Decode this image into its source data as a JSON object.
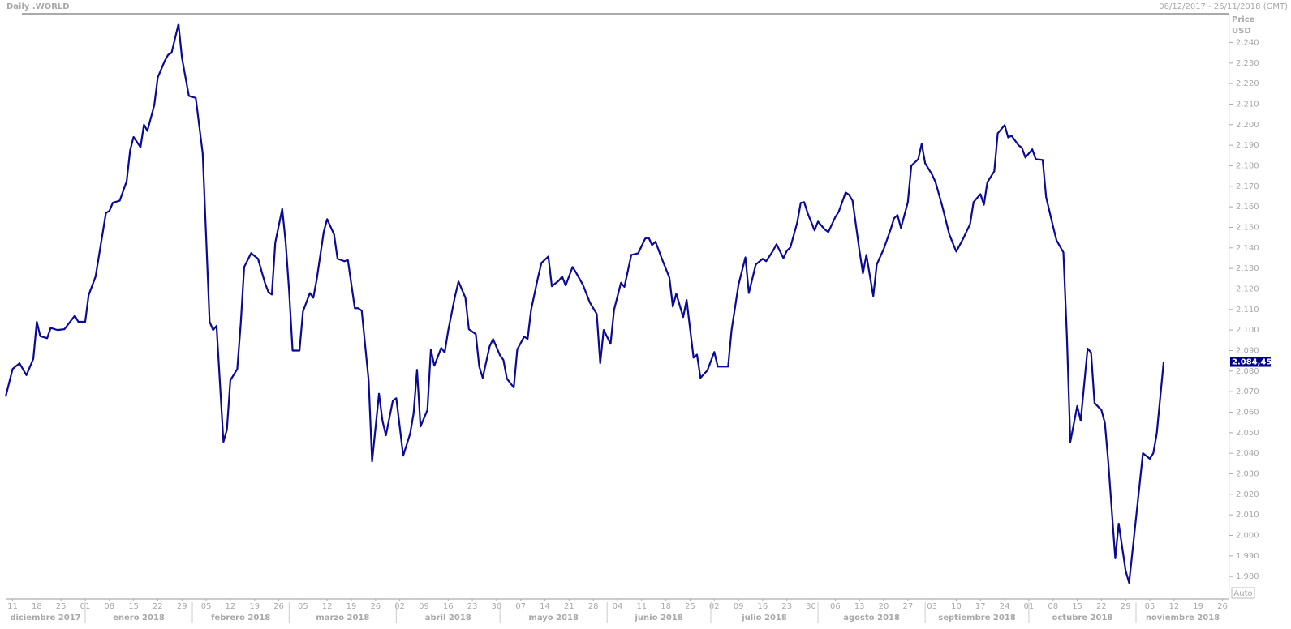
{
  "chart_data": {
    "type": "line",
    "title": "Daily .WORLD",
    "subtitle": "08/12/2017 - 26/11/2018 (GMT)",
    "y_label": "Price",
    "y_unit": "USD",
    "scale_button": "Auto",
    "current_label": "2.084,45",
    "color": "#0a0a96",
    "xlim": [
      "2017-12-09",
      "2018-11-28"
    ],
    "ylim": [
      1969,
      2254
    ],
    "x": [
      "2017-12-09",
      "2017-12-11",
      "2017-12-13",
      "2017-12-15",
      "2017-12-17",
      "2017-12-18",
      "2017-12-19",
      "2017-12-21",
      "2017-12-22",
      "2017-12-24",
      "2017-12-26",
      "2017-12-29",
      "2017-12-30",
      "2018-01-01",
      "2018-01-02",
      "2018-01-04",
      "2018-01-07",
      "2018-01-08",
      "2018-01-09",
      "2018-01-11",
      "2018-01-13",
      "2018-01-14",
      "2018-01-15",
      "2018-01-17",
      "2018-01-18",
      "2018-01-19",
      "2018-01-21",
      "2018-01-22",
      "2018-01-24",
      "2018-01-25",
      "2018-01-26",
      "2018-01-28",
      "2018-01-29",
      "2018-01-31",
      "2018-02-02",
      "2018-02-04",
      "2018-02-06",
      "2018-02-07",
      "2018-02-08",
      "2018-02-10",
      "2018-02-11",
      "2018-02-12",
      "2018-02-14",
      "2018-02-15",
      "2018-02-16",
      "2018-02-18",
      "2018-02-20",
      "2018-02-22",
      "2018-02-23",
      "2018-02-24",
      "2018-02-25",
      "2018-02-27",
      "2018-02-28",
      "2018-03-01",
      "2018-03-02",
      "2018-03-04",
      "2018-03-05",
      "2018-03-07",
      "2018-03-08",
      "2018-03-09",
      "2018-03-11",
      "2018-03-12",
      "2018-03-14",
      "2018-03-15",
      "2018-03-17",
      "2018-03-18",
      "2018-03-20",
      "2018-03-21",
      "2018-03-22",
      "2018-03-24",
      "2018-03-25",
      "2018-03-27",
      "2018-03-28",
      "2018-03-29",
      "2018-03-31",
      "2018-04-01",
      "2018-04-03",
      "2018-04-05",
      "2018-04-06",
      "2018-04-07",
      "2018-04-08",
      "2018-04-10",
      "2018-04-11",
      "2018-04-12",
      "2018-04-14",
      "2018-04-15",
      "2018-04-16",
      "2018-04-18",
      "2018-04-19",
      "2018-04-21",
      "2018-04-22",
      "2018-04-24",
      "2018-04-25",
      "2018-04-26",
      "2018-04-28",
      "2018-04-29",
      "2018-05-01",
      "2018-05-02",
      "2018-05-03",
      "2018-05-05",
      "2018-05-06",
      "2018-05-08",
      "2018-05-09",
      "2018-05-10",
      "2018-05-12",
      "2018-05-13",
      "2018-05-15",
      "2018-05-16",
      "2018-05-18",
      "2018-05-19",
      "2018-05-20",
      "2018-05-22",
      "2018-05-23",
      "2018-05-25",
      "2018-05-27",
      "2018-05-29",
      "2018-05-30",
      "2018-05-31",
      "2018-06-02",
      "2018-06-03",
      "2018-06-05",
      "2018-06-06",
      "2018-06-08",
      "2018-06-10",
      "2018-06-12",
      "2018-06-13",
      "2018-06-14",
      "2018-06-15",
      "2018-06-17",
      "2018-06-19",
      "2018-06-20",
      "2018-06-21",
      "2018-06-23",
      "2018-06-24",
      "2018-06-26",
      "2018-06-27",
      "2018-06-28",
      "2018-06-30",
      "2018-07-02",
      "2018-07-03",
      "2018-07-06",
      "2018-07-07",
      "2018-07-09",
      "2018-07-11",
      "2018-07-12",
      "2018-07-14",
      "2018-07-16",
      "2018-07-17",
      "2018-07-19",
      "2018-07-20",
      "2018-07-22",
      "2018-07-23",
      "2018-07-24",
      "2018-07-26",
      "2018-07-27",
      "2018-07-28",
      "2018-07-29",
      "2018-07-31",
      "2018-08-01",
      "2018-08-03",
      "2018-08-04",
      "2018-08-06",
      "2018-08-07",
      "2018-08-09",
      "2018-08-10",
      "2018-08-11",
      "2018-08-13",
      "2018-08-14",
      "2018-08-15",
      "2018-08-17",
      "2018-08-18",
      "2018-08-20",
      "2018-08-22",
      "2018-08-23",
      "2018-08-24",
      "2018-08-25",
      "2018-08-27",
      "2018-08-28",
      "2018-08-30",
      "2018-08-31",
      "2018-09-01",
      "2018-09-03",
      "2018-09-04",
      "2018-09-06",
      "2018-09-08",
      "2018-09-10",
      "2018-09-12",
      "2018-09-14",
      "2018-09-15",
      "2018-09-17",
      "2018-09-18",
      "2018-09-19",
      "2018-09-21",
      "2018-09-22",
      "2018-09-24",
      "2018-09-25",
      "2018-09-26",
      "2018-09-28",
      "2018-09-29",
      "2018-09-30",
      "2018-10-02",
      "2018-10-03",
      "2018-10-05",
      "2018-10-06",
      "2018-10-08",
      "2018-10-09",
      "2018-10-11",
      "2018-10-12",
      "2018-10-13",
      "2018-10-15",
      "2018-10-16",
      "2018-10-18",
      "2018-10-19",
      "2018-10-20",
      "2018-10-22",
      "2018-10-23",
      "2018-10-24",
      "2018-10-26",
      "2018-10-27",
      "2018-10-29",
      "2018-10-30",
      "2018-10-31",
      "2018-11-02",
      "2018-11-03",
      "2018-11-05",
      "2018-11-06",
      "2018-11-07",
      "2018-11-09"
    ],
    "values": [
      2067.6,
      2081,
      2083.8,
      2078,
      2086,
      2104,
      2097,
      2096,
      2101,
      2100,
      2100.4,
      2107,
      2104,
      2104,
      2117,
      2126,
      2157,
      2158,
      2162,
      2163,
      2172.5,
      2187.5,
      2194,
      2189,
      2200,
      2197,
      2209.6,
      2223,
      2231,
      2234,
      2235,
      2249,
      2232.5,
      2214,
      2213,
      2186,
      2104,
      2100,
      2102,
      2045.5,
      2051.5,
      2075.5,
      2081,
      2103,
      2130.7,
      2137.4,
      2134.7,
      2123,
      2118.5,
      2117.3,
      2142.6,
      2159,
      2142.6,
      2119,
      2090,
      2090,
      2109,
      2118,
      2115.7,
      2124.8,
      2147.7,
      2154,
      2146.5,
      2134.7,
      2133.5,
      2134,
      2110.6,
      2110.6,
      2109.4,
      2075.5,
      2036,
      2069,
      2055.8,
      2048.7,
      2065.6,
      2066.8,
      2038.8,
      2049.5,
      2059.3,
      2080.6,
      2053,
      2061,
      2090.5,
      2082.6,
      2091.3,
      2089,
      2099.6,
      2116.5,
      2123.6,
      2115.7,
      2100.4,
      2098,
      2082.2,
      2076.7,
      2092,
      2095.6,
      2087.7,
      2085.4,
      2076.3,
      2072,
      2090.5,
      2096.8,
      2095.6,
      2109.8,
      2125.6,
      2132.7,
      2135.8,
      2121.3,
      2124,
      2126,
      2121.7,
      2130.7,
      2128,
      2122,
      2113.4,
      2107.8,
      2083.8,
      2100,
      2093.3,
      2109.8,
      2123,
      2121,
      2136.6,
      2137.4,
      2144.5,
      2145,
      2141.4,
      2143,
      2134,
      2125.6,
      2111.4,
      2117.7,
      2106.3,
      2114.6,
      2086.5,
      2088,
      2076.7,
      2080.3,
      2089.3,
      2082.2,
      2082.2,
      2100,
      2122,
      2135.4,
      2118,
      2131.9,
      2134.7,
      2133.5,
      2138.6,
      2141.8,
      2135,
      2138.6,
      2140.2,
      2152.4,
      2161.9,
      2162.3,
      2157,
      2148.5,
      2152.8,
      2148.9,
      2147.7,
      2155,
      2157.6,
      2167,
      2165.8,
      2163,
      2138.6,
      2127.6,
      2136.6,
      2116.5,
      2131.9,
      2139.4,
      2148.9,
      2154.4,
      2156,
      2149.7,
      2162.3,
      2180,
      2183.2,
      2190.7,
      2181.2,
      2175.7,
      2172,
      2160,
      2146.5,
      2138.2,
      2144.5,
      2151.6,
      2162.3,
      2166.2,
      2161,
      2172,
      2177.3,
      2195.8,
      2199.8,
      2193.8,
      2194.6,
      2190,
      2188.7,
      2184,
      2188,
      2183.2,
      2182.8,
      2164.7,
      2150.5,
      2143.7,
      2137.8,
      2097.2,
      2045.5,
      2063,
      2055.8,
      2091,
      2089,
      2064.5,
      2061,
      2054.7,
      2035.3,
      1988.8,
      2005.7,
      1982.8,
      1976.9,
      1992.6,
      2024,
      2040,
      2037.3,
      2040,
      2049.5,
      2084.45
    ],
    "yticks": [
      {
        "value": 1980,
        "label": "1.980"
      },
      {
        "value": 1990,
        "label": "1.990"
      },
      {
        "value": 2000,
        "label": "2.000"
      },
      {
        "value": 2010,
        "label": "2.010"
      },
      {
        "value": 2020,
        "label": "2.020"
      },
      {
        "value": 2030,
        "label": "2.030"
      },
      {
        "value": 2040,
        "label": "2.040"
      },
      {
        "value": 2050,
        "label": "2.050"
      },
      {
        "value": 2060,
        "label": "2.060"
      },
      {
        "value": 2070,
        "label": "2.070"
      },
      {
        "value": 2080,
        "label": "2.080"
      },
      {
        "value": 2090,
        "label": "2.090"
      },
      {
        "value": 2100,
        "label": "2.100"
      },
      {
        "value": 2110,
        "label": "2.110"
      },
      {
        "value": 2120,
        "label": "2.120"
      },
      {
        "value": 2130,
        "label": "2.130"
      },
      {
        "value": 2140,
        "label": "2.140"
      },
      {
        "value": 2150,
        "label": "2.150"
      },
      {
        "value": 2160,
        "label": "2.160"
      },
      {
        "value": 2170,
        "label": "2.170"
      },
      {
        "value": 2180,
        "label": "2.180"
      },
      {
        "value": 2190,
        "label": "2.190"
      },
      {
        "value": 2200,
        "label": "2.200"
      },
      {
        "value": 2210,
        "label": "2.210"
      },
      {
        "value": 2220,
        "label": "2.220"
      },
      {
        "value": 2230,
        "label": "2.230"
      },
      {
        "value": 2240,
        "label": "2.240"
      }
    ],
    "xticks": [
      {
        "value": "2017-12-11",
        "label": "11"
      },
      {
        "value": "2017-12-18",
        "label": "18"
      },
      {
        "value": "2017-12-25",
        "label": "25"
      },
      {
        "value": "2018-01-01",
        "label": "01"
      },
      {
        "value": "2018-01-08",
        "label": "08"
      },
      {
        "value": "2018-01-15",
        "label": "15"
      },
      {
        "value": "2018-01-22",
        "label": "22"
      },
      {
        "value": "2018-01-29",
        "label": "29"
      },
      {
        "value": "2018-02-05",
        "label": "05"
      },
      {
        "value": "2018-02-12",
        "label": "12"
      },
      {
        "value": "2018-02-19",
        "label": "19"
      },
      {
        "value": "2018-02-26",
        "label": "26"
      },
      {
        "value": "2018-03-05",
        "label": "05"
      },
      {
        "value": "2018-03-12",
        "label": "12"
      },
      {
        "value": "2018-03-19",
        "label": "19"
      },
      {
        "value": "2018-03-26",
        "label": "26"
      },
      {
        "value": "2018-04-02",
        "label": "02"
      },
      {
        "value": "2018-04-09",
        "label": "09"
      },
      {
        "value": "2018-04-16",
        "label": "16"
      },
      {
        "value": "2018-04-23",
        "label": "23"
      },
      {
        "value": "2018-04-30",
        "label": "30"
      },
      {
        "value": "2018-05-07",
        "label": "07"
      },
      {
        "value": "2018-05-14",
        "label": "14"
      },
      {
        "value": "2018-05-21",
        "label": "21"
      },
      {
        "value": "2018-05-28",
        "label": "28"
      },
      {
        "value": "2018-06-04",
        "label": "04"
      },
      {
        "value": "2018-06-11",
        "label": "11"
      },
      {
        "value": "2018-06-18",
        "label": "18"
      },
      {
        "value": "2018-06-25",
        "label": "25"
      },
      {
        "value": "2018-07-02",
        "label": "02"
      },
      {
        "value": "2018-07-09",
        "label": "09"
      },
      {
        "value": "2018-07-16",
        "label": "16"
      },
      {
        "value": "2018-07-23",
        "label": "23"
      },
      {
        "value": "2018-07-30",
        "label": "30"
      },
      {
        "value": "2018-08-06",
        "label": "06"
      },
      {
        "value": "2018-08-13",
        "label": "13"
      },
      {
        "value": "2018-08-20",
        "label": "20"
      },
      {
        "value": "2018-08-27",
        "label": "27"
      },
      {
        "value": "2018-09-03",
        "label": "03"
      },
      {
        "value": "2018-09-10",
        "label": "10"
      },
      {
        "value": "2018-09-17",
        "label": "17"
      },
      {
        "value": "2018-09-24",
        "label": "24"
      },
      {
        "value": "2018-10-01",
        "label": "01"
      },
      {
        "value": "2018-10-08",
        "label": "08"
      },
      {
        "value": "2018-10-15",
        "label": "15"
      },
      {
        "value": "2018-10-22",
        "label": "22"
      },
      {
        "value": "2018-10-29",
        "label": "29"
      },
      {
        "value": "2018-11-05",
        "label": "05"
      },
      {
        "value": "2018-11-12",
        "label": "12"
      },
      {
        "value": "2018-11-19",
        "label": "19"
      },
      {
        "value": "2018-11-26",
        "label": "26"
      }
    ],
    "months": [
      {
        "value": "2017-12",
        "label": "diciembre 2017"
      },
      {
        "value": "2018-01",
        "label": "enero 2018"
      },
      {
        "value": "2018-02",
        "label": "febrero 2018"
      },
      {
        "value": "2018-03",
        "label": "marzo 2018"
      },
      {
        "value": "2018-04",
        "label": "abril 2018"
      },
      {
        "value": "2018-05",
        "label": "mayo 2018"
      },
      {
        "value": "2018-06",
        "label": "junio 2018"
      },
      {
        "value": "2018-07",
        "label": "julio 2018"
      },
      {
        "value": "2018-08",
        "label": "agosto 2018"
      },
      {
        "value": "2018-09",
        "label": "septiembre 2018"
      },
      {
        "value": "2018-10",
        "label": "octubre 2018"
      },
      {
        "value": "2018-11",
        "label": "noviembre 2018"
      }
    ]
  }
}
